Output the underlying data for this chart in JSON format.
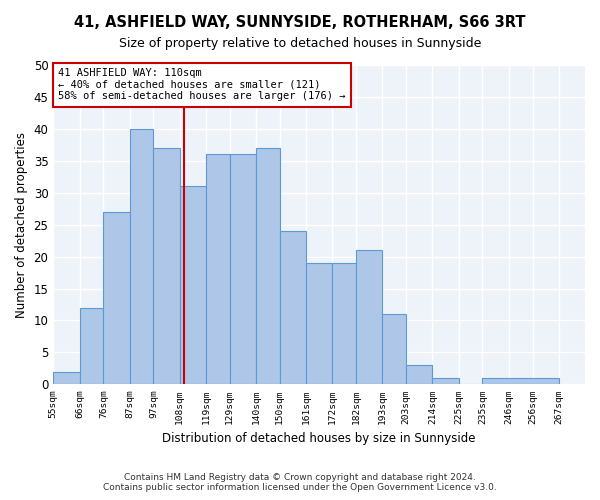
{
  "title1": "41, ASHFIELD WAY, SUNNYSIDE, ROTHERHAM, S66 3RT",
  "title2": "Size of property relative to detached houses in Sunnyside",
  "xlabel": "Distribution of detached houses by size in Sunnyside",
  "ylabel": "Number of detached properties",
  "bar_values": [
    2,
    12,
    27,
    40,
    37,
    31,
    36,
    36,
    37,
    24,
    19,
    19,
    21,
    11,
    3,
    1,
    0,
    1
  ],
  "bin_edges": [
    55,
    66,
    76,
    87,
    97,
    108,
    119,
    129,
    140,
    150,
    161,
    172,
    182,
    193,
    203,
    214,
    225,
    235,
    267
  ],
  "tick_positions": [
    55,
    66,
    76,
    87,
    97,
    108,
    119,
    129,
    140,
    150,
    161,
    172,
    182,
    193,
    203,
    214,
    225,
    235,
    246,
    256,
    267
  ],
  "tick_labels": [
    "55sqm",
    "66sqm",
    "76sqm",
    "87sqm",
    "97sqm",
    "108sqm",
    "119sqm",
    "129sqm",
    "140sqm",
    "150sqm",
    "161sqm",
    "172sqm",
    "182sqm",
    "193sqm",
    "203sqm",
    "214sqm",
    "225sqm",
    "235sqm",
    "246sqm",
    "256sqm",
    "267sqm"
  ],
  "bar_color": "#aec6e8",
  "bar_edge_color": "#5b9bd5",
  "property_value": 110,
  "vline_color": "#cc0000",
  "annotation_line0": "41 ASHFIELD WAY: 110sqm",
  "annotation_line1": "← 40% of detached houses are smaller (121)",
  "annotation_line2": "58% of semi-detached houses are larger (176) →",
  "ylim_max": 50,
  "yticks": [
    0,
    5,
    10,
    15,
    20,
    25,
    30,
    35,
    40,
    45,
    50
  ],
  "footnote1": "Contains HM Land Registry data © Crown copyright and database right 2024.",
  "footnote2": "Contains public sector information licensed under the Open Government Licence v3.0.",
  "bg_color": "#eef3fa",
  "grid_color": "#ffffff",
  "xlim_min": 55,
  "xlim_max": 278
}
